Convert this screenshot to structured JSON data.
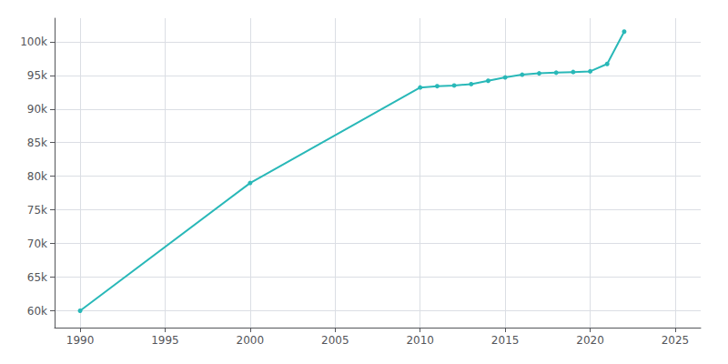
{
  "chart_data": {
    "type": "line",
    "x": [
      1990,
      2000,
      2010,
      2011,
      2012,
      2013,
      2014,
      2015,
      2016,
      2017,
      2018,
      2019,
      2020,
      2021,
      2022
    ],
    "values": [
      60000,
      79000,
      93200,
      93400,
      93500,
      93700,
      94200,
      94700,
      95100,
      95300,
      95400,
      95500,
      95600,
      96700,
      101500
    ],
    "color": "#29b8b8",
    "marker": "circle",
    "xlim": [
      1988.5,
      2026.5
    ],
    "xticks": [
      1990,
      1995,
      2000,
      2005,
      2010,
      2015,
      2020,
      2025
    ],
    "ylim": [
      57500,
      103500
    ],
    "yticks": [
      {
        "value": 60000,
        "label": "60k"
      },
      {
        "value": 65000,
        "label": "65k"
      },
      {
        "value": 70000,
        "label": "70k"
      },
      {
        "value": 75000,
        "label": "75k"
      },
      {
        "value": 80000,
        "label": "80k"
      },
      {
        "value": 85000,
        "label": "85k"
      },
      {
        "value": 90000,
        "label": "90k"
      },
      {
        "value": 95000,
        "label": "95k"
      },
      {
        "value": 100000,
        "label": "100k"
      }
    ],
    "grid": true
  }
}
